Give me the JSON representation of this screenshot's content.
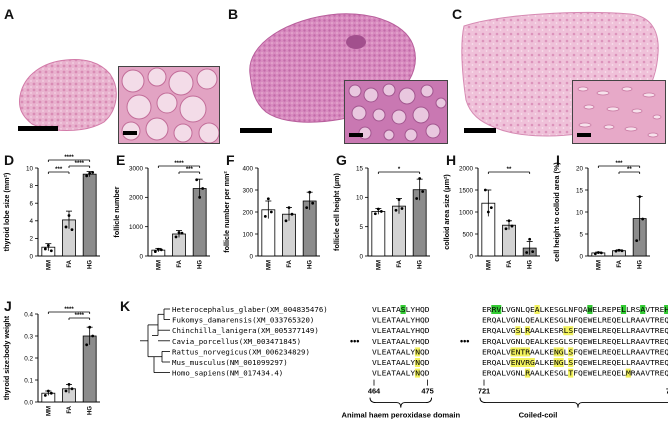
{
  "panels": {
    "A": "A",
    "B": "B",
    "C": "C",
    "D": "D",
    "E": "E",
    "F": "F",
    "G": "G",
    "H": "H",
    "I": "I",
    "J": "J",
    "K": "K"
  },
  "colors": {
    "MM": "#ffffff",
    "FA": "#d3d3d3",
    "HG": "#8c8c8c",
    "tissue": "#e9a9c9",
    "highlight_green": "#33cc33",
    "highlight_yellow": "#f2f25c"
  },
  "chart_data": [
    {
      "id": "D",
      "type": "bar",
      "ylabel": "thyroid lobe size (mm²)",
      "categories": [
        "MM",
        "FA",
        "HG"
      ],
      "values": [
        1.0,
        4.1,
        9.3
      ],
      "errors": [
        0.4,
        1.0,
        0.3
      ],
      "points": [
        [
          0.8,
          1.2,
          0.6
        ],
        [
          3.3,
          4.6,
          3.0
        ],
        [
          9.1,
          9.4,
          9.5
        ]
      ],
      "ylim": [
        0,
        10
      ],
      "yticks": [
        "0",
        "2",
        "4",
        "6",
        "8",
        "10"
      ],
      "sig": [
        {
          "from": 0,
          "to": 1,
          "label": "***",
          "level": 1
        },
        {
          "from": 1,
          "to": 2,
          "label": "****",
          "level": 2
        },
        {
          "from": 0,
          "to": 2,
          "label": "****",
          "level": 3
        }
      ]
    },
    {
      "id": "E",
      "type": "bar",
      "ylabel": "follicle number",
      "categories": [
        "MM",
        "FA",
        "HG"
      ],
      "values": [
        200,
        750,
        2300
      ],
      "errors": [
        60,
        120,
        320
      ],
      "points": [
        [
          150,
          230,
          210
        ],
        [
          650,
          800,
          780
        ],
        [
          2600,
          2000,
          2300
        ]
      ],
      "ylim": [
        0,
        3000
      ],
      "yticks": [
        "0",
        "1000",
        "2000",
        "3000"
      ],
      "sig": [
        {
          "from": 1,
          "to": 2,
          "label": "***",
          "level": 1
        },
        {
          "from": 0,
          "to": 2,
          "label": "****",
          "level": 2
        }
      ]
    },
    {
      "id": "F",
      "type": "bar",
      "ylabel": "follicle number per mm²",
      "categories": [
        "MM",
        "FA",
        "HG"
      ],
      "values": [
        210,
        190,
        250
      ],
      "errors": [
        40,
        30,
        40
      ],
      "points": [
        [
          180,
          260,
          200
        ],
        [
          160,
          220,
          190
        ],
        [
          220,
          290,
          240
        ]
      ],
      "ylim": [
        0,
        400
      ],
      "yticks": [
        "0",
        "100",
        "200",
        "300",
        "400"
      ],
      "sig": []
    },
    {
      "id": "G",
      "type": "bar",
      "ylabel": "follicle cell height (μm)",
      "categories": [
        "MM",
        "FA",
        "HG"
      ],
      "values": [
        7.6,
        8.5,
        11.3
      ],
      "errors": [
        0.5,
        1.3,
        1.8
      ],
      "points": [
        [
          7.2,
          8.0,
          7.6
        ],
        [
          7.8,
          9.6,
          8.1
        ],
        [
          9.8,
          13.2,
          11.0
        ]
      ],
      "ylim": [
        0,
        15
      ],
      "yticks": [
        "0",
        "5",
        "10",
        "15"
      ],
      "sig": [
        {
          "from": 0,
          "to": 2,
          "label": "*",
          "level": 1
        }
      ]
    },
    {
      "id": "H",
      "type": "bar",
      "ylabel": "colloid area size (μm²)",
      "categories": [
        "MM",
        "FA",
        "HG"
      ],
      "values": [
        1200,
        700,
        180
      ],
      "errors": [
        300,
        100,
        150
      ],
      "points": [
        [
          1500,
          1000,
          1100
        ],
        [
          620,
          800,
          680
        ],
        [
          80,
          380,
          100
        ]
      ],
      "ylim": [
        0,
        2000
      ],
      "yticks": [
        "0",
        "500",
        "1000",
        "1500",
        "2000"
      ],
      "sig": [
        {
          "from": 0,
          "to": 2,
          "label": "**",
          "level": 1
        }
      ]
    },
    {
      "id": "I",
      "type": "bar",
      "ylabel": "cell height to colloid area (%)",
      "categories": [
        "MM",
        "FA",
        "HG"
      ],
      "values": [
        0.7,
        1.2,
        8.5
      ],
      "errors": [
        0.2,
        0.2,
        5.0
      ],
      "points": [
        [
          0.5,
          0.8,
          0.7
        ],
        [
          1.1,
          1.3,
          1.2
        ],
        [
          3.5,
          13.5,
          8.4
        ]
      ],
      "ylim": [
        0,
        20
      ],
      "yticks": [
        "0",
        "5",
        "10",
        "15",
        "20"
      ],
      "sig": [
        {
          "from": 1,
          "to": 2,
          "label": "**",
          "level": 1
        },
        {
          "from": 0,
          "to": 2,
          "label": "***",
          "level": 2
        }
      ]
    },
    {
      "id": "J",
      "type": "bar",
      "ylabel": "thyroid size:body weight",
      "categories": [
        "MM",
        "FA",
        "HG"
      ],
      "values": [
        0.04,
        0.06,
        0.3
      ],
      "errors": [
        0.01,
        0.02,
        0.04
      ],
      "points": [
        [
          0.03,
          0.05,
          0.04
        ],
        [
          0.05,
          0.08,
          0.06
        ],
        [
          0.26,
          0.34,
          0.3
        ]
      ],
      "ylim": [
        0,
        0.4
      ],
      "yticks": [
        "0.0",
        "0.1",
        "0.2",
        "0.3",
        "0.4"
      ],
      "sig": [
        {
          "from": 1,
          "to": 2,
          "label": "****",
          "level": 1
        },
        {
          "from": 0,
          "to": 2,
          "label": "****",
          "level": 2
        }
      ]
    }
  ],
  "alignment": {
    "species": [
      "Heterocephalus_glaber(XM_004835476)",
      "Fukomys_damarensis(XM_033765320)",
      "Chinchilla_lanigera(XM_005377149)",
      "Cavia_porcellus(XM_003471845)",
      "Rattus_norvegicus(XM_006234829)",
      "Mus_musculus(NM_001099297)",
      "Homo_sapiens(NM_017434.4)"
    ],
    "seq1": [
      "VLEATASLYHQD",
      "VLEATAALYHQD",
      "VLEATAALYHQD",
      "VLEATAALYHQD",
      "VLEATAALYNQD",
      "VLEATAALYNQD",
      "VLEATAALYNQD"
    ],
    "seq2": [
      "ERRVLVGNLQEALKESGLNFQAWELREPELLRSAVTREHR",
      "ERQALVGNLQEALKESGLNFQEWELREQELLRAAVTREQR",
      "ERQALVGSLRAALKESRLSFQEWELREQELLRAAVTREQR",
      "ERQALVGNLQEALKESGLSFQEWELREQELLRAAVTREQR",
      "ERQALVENTRAALKENGLSFQEWELREQELLRAAVTREQR",
      "ERQALVENVRGALKENGLSFQEWELREQELLRAAVTREQR",
      "ERQALVGNLRAALKESGLTFQEWELREQELMRAAVTREQR"
    ],
    "hl1": [
      [
        [
          6,
          "g"
        ]
      ],
      [],
      [],
      [],
      [
        [
          9,
          "y"
        ]
      ],
      [
        [
          9,
          "y"
        ]
      ],
      [
        [
          9,
          "y"
        ]
      ]
    ],
    "hl2": [
      [
        [
          2,
          "g"
        ],
        [
          3,
          "g"
        ],
        [
          11,
          "y"
        ],
        [
          22,
          "g"
        ],
        [
          29,
          "g"
        ],
        [
          33,
          "g"
        ],
        [
          38,
          "g"
        ]
      ],
      [],
      [
        [
          7,
          "y"
        ],
        [
          9,
          "y"
        ],
        [
          17,
          "y"
        ],
        [
          18,
          "y"
        ]
      ],
      [],
      [
        [
          6,
          "y"
        ],
        [
          7,
          "y"
        ],
        [
          8,
          "y"
        ],
        [
          9,
          "y"
        ],
        [
          15,
          "y"
        ],
        [
          16,
          "y"
        ],
        [
          18,
          "y"
        ]
      ],
      [
        [
          6,
          "y"
        ],
        [
          7,
          "y"
        ],
        [
          8,
          "y"
        ],
        [
          9,
          "y"
        ],
        [
          10,
          "y"
        ],
        [
          15,
          "y"
        ],
        [
          16,
          "y"
        ],
        [
          18,
          "y"
        ]
      ],
      [
        [
          9,
          "y"
        ],
        [
          18,
          "y"
        ],
        [
          30,
          "y"
        ]
      ]
    ],
    "ellipsis": "•••",
    "pos_start1": "464",
    "pos_end1": "475",
    "pos_start2": "721",
    "pos_end2": "760",
    "domain1": "Animal haem peroxidase domain",
    "domain2": "Coiled-coil"
  }
}
